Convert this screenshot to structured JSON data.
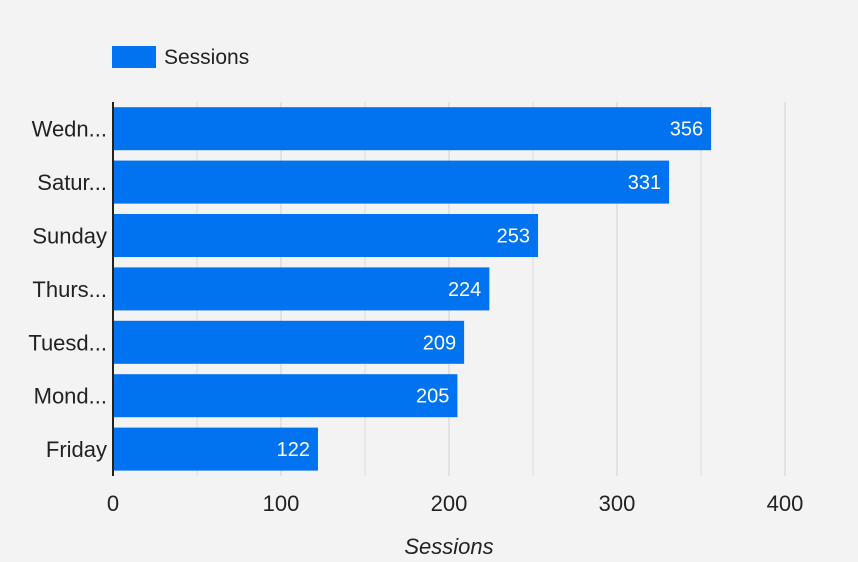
{
  "chart_data": {
    "type": "bar",
    "orientation": "horizontal",
    "categories": [
      "Wedn...",
      "Satur...",
      "Sunday",
      "Thurs...",
      "Tuesd...",
      "Mond...",
      "Friday"
    ],
    "series": [
      {
        "name": "Sessions",
        "values": [
          356,
          331,
          253,
          224,
          209,
          205,
          122
        ],
        "color": "#0172f0"
      }
    ],
    "xlabel": "Sessions",
    "xlim": [
      0,
      400
    ],
    "xticks": [
      0,
      100,
      200,
      300,
      400
    ],
    "xtick_labels": [
      "0",
      "100",
      "200",
      "300",
      "400"
    ],
    "data_labels": [
      "356",
      "331",
      "253",
      "224",
      "209",
      "205",
      "122"
    ],
    "grid": true,
    "legend_position": "top-left"
  },
  "colors": {
    "background": "#f3f3f3",
    "bar": "#0172f0",
    "grid": "#dcdcdc",
    "axis": "#222222"
  }
}
